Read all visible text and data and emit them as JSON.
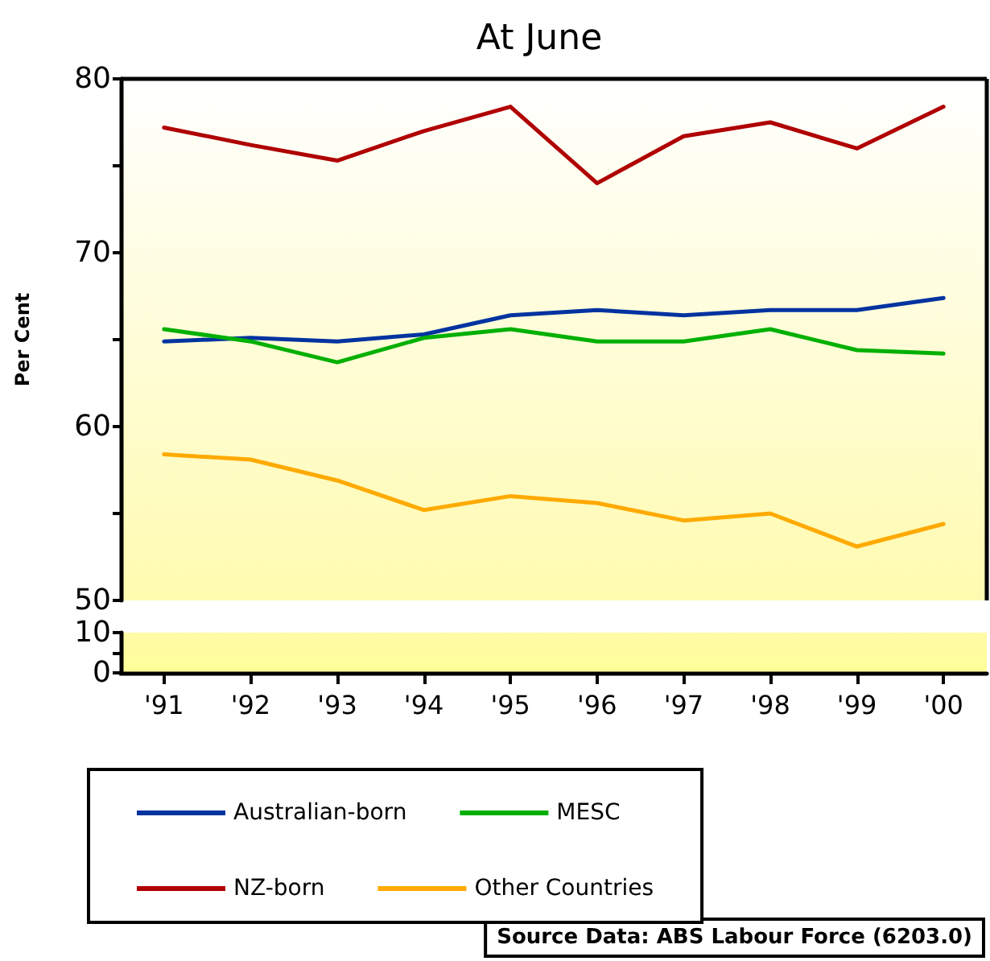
{
  "chart_data": [
    {
      "type": "line",
      "title": "At June",
      "ylabel": "Per Cent",
      "categories": [
        null,
        null,
        null,
        null,
        null,
        null,
        null,
        null,
        null,
        null
      ],
      "series": [
        {
          "name": "Australian-born",
          "color": "#0033a0",
          "values": [
            64.9,
            65.1,
            64.9,
            65.3,
            66.4,
            66.7,
            66.4,
            66.7,
            66.7,
            67.4
          ]
        },
        {
          "name": "MESC",
          "color": "#00b000",
          "values": [
            65.6,
            64.9,
            63.7,
            65.1,
            65.6,
            64.9,
            64.9,
            65.6,
            64.4,
            64.2
          ]
        },
        {
          "name": "NZ-born",
          "color": "#b00000",
          "values": [
            77.2,
            76.2,
            75.3,
            77.0,
            78.4,
            74.0,
            76.7,
            77.5,
            76.0,
            78.4
          ]
        },
        {
          "name": "Other Countries",
          "color": "#ffaa00",
          "values": [
            58.4,
            58.1,
            56.9,
            55.2,
            56.0,
            55.6,
            54.6,
            55.0,
            53.1,
            54.4
          ]
        }
      ],
      "ylim": [
        50,
        80
      ],
      "yticks": [
        50,
        {
          "value": 55,
          "label": null
        },
        60,
        {
          "value": 65,
          "label": null
        },
        70,
        {
          "value": 75,
          "label": null
        },
        80
      ],
      "tick_labels": "y",
      "grid": false,
      "legend": "bottom",
      "marker": "none",
      "line_style": "solid",
      "annotations": [
        "Source Data: ABS Labour Force (6203.0)"
      ]
    },
    {
      "type": "line",
      "categories": [
        "'91",
        "'92",
        "'93",
        "'94",
        "'95",
        "'96",
        "'97",
        "'98",
        "'99",
        "'00"
      ],
      "ylim": [
        0,
        10
      ],
      "yticks": [
        0,
        {
          "value": 5,
          "label": null
        },
        10
      ],
      "grid": false
    }
  ]
}
